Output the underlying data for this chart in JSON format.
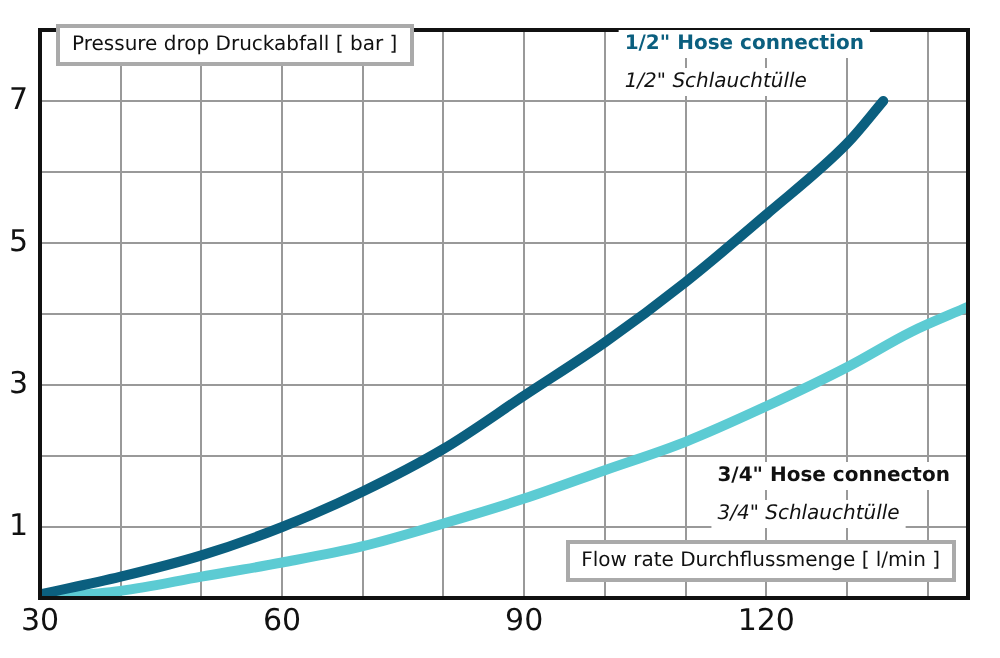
{
  "chart_data": {
    "type": "line",
    "xlabel": "Flow rate Durchflussmenge [ l/min ]",
    "ylabel": "Pressure drop Druckabfall [ bar ]",
    "xlim": [
      30,
      145
    ],
    "ylim": [
      0,
      8
    ],
    "xticks": [
      30,
      {
        "value": 40,
        "label": null
      },
      {
        "value": 50,
        "label": null
      },
      60,
      {
        "value": 70,
        "label": null
      },
      {
        "value": 80,
        "label": null
      },
      90,
      {
        "value": 100,
        "label": null
      },
      {
        "value": 110,
        "label": null
      },
      120,
      {
        "value": 130,
        "label": null
      },
      {
        "value": 140,
        "label": null
      }
    ],
    "yticks": [
      {
        "value": 0,
        "label": null
      },
      1,
      {
        "value": 2,
        "label": null
      },
      3,
      {
        "value": 4,
        "label": null
      },
      5,
      {
        "value": 6,
        "label": null
      },
      7
    ],
    "grid": true,
    "legend": false,
    "marker": "none",
    "line_style": "solid",
    "series": [
      {
        "name": "1/2\" Hose connection",
        "color": "#0b5f7f",
        "x": [
          30,
          40,
          50,
          60,
          70,
          80,
          90,
          100,
          110,
          120,
          130,
          134.5
        ],
        "values": [
          0.05,
          0.3,
          0.6,
          1.0,
          1.5,
          2.1,
          2.85,
          3.6,
          4.45,
          5.4,
          6.4,
          7.0
        ]
      },
      {
        "name": "3/4\" Hose connecton",
        "color": "#5ccbd3",
        "x": [
          30,
          40,
          50,
          60,
          70,
          80,
          90,
          100,
          110,
          120,
          130,
          138,
          145
        ],
        "values": [
          0,
          0.1,
          0.3,
          0.5,
          0.73,
          1.05,
          1.4,
          1.8,
          2.2,
          2.7,
          3.25,
          3.75,
          4.1
        ]
      }
    ],
    "annotations": [
      "1/2\" Schlauchtülle",
      "3/4\" Schlauchtülle"
    ]
  }
}
